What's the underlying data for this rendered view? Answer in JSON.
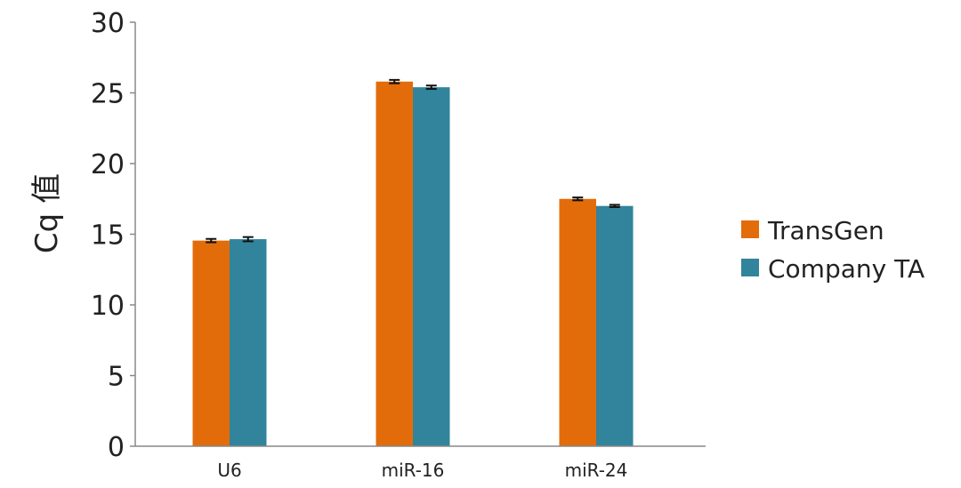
{
  "chart_data": {
    "type": "bar",
    "title": "",
    "xlabel": "",
    "ylabel": "Cq 值",
    "ylim": [
      0,
      30
    ],
    "yticks": [
      "0",
      "5",
      "10",
      "15",
      "20",
      "25",
      "30"
    ],
    "categories": [
      "U6",
      "miR-16",
      "miR-24"
    ],
    "series": [
      {
        "name": "TransGen",
        "color": "#e36c0a",
        "values": [
          14.55,
          25.8,
          17.5
        ],
        "errors": [
          0.12,
          0.12,
          0.1
        ]
      },
      {
        "name": "Company TA",
        "color": "#31849b",
        "values": [
          14.65,
          25.4,
          17.0
        ],
        "errors": [
          0.15,
          0.12,
          0.08
        ]
      }
    ],
    "legend": "right",
    "grid": false
  }
}
